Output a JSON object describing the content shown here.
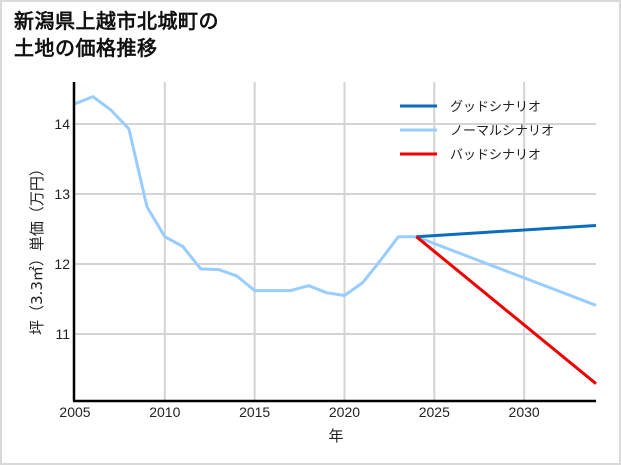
{
  "title_line1": "新潟県上越市北城町の",
  "title_line2": "土地の価格推移",
  "chart_data": {
    "type": "line",
    "title": "新潟県上越市北城町の土地の価格推移",
    "xlabel": "年",
    "ylabel": "坪（3.3㎡）単価（万円）",
    "xlim": [
      2005,
      2034
    ],
    "ylim": [
      10.2,
      14.6
    ],
    "xticks": [
      2005,
      2010,
      2015,
      2020,
      2025,
      2030
    ],
    "yticks": [
      11,
      12,
      13,
      14
    ],
    "grid": true,
    "legend_position": "upper right",
    "series": [
      {
        "name": "グッドシナリオ",
        "color": "#0a6ebd",
        "x": [
          2024,
          2034
        ],
        "values": [
          12.39,
          12.55
        ]
      },
      {
        "name": "ノーマルシナリオ",
        "color": "#99ccff",
        "x": [
          2005,
          2006,
          2007,
          2008,
          2009,
          2010,
          2011,
          2012,
          2013,
          2014,
          2015,
          2016,
          2017,
          2018,
          2019,
          2020,
          2021,
          2022,
          2023,
          2024,
          2034
        ],
        "values": [
          14.29,
          14.39,
          14.2,
          13.93,
          12.82,
          12.39,
          12.25,
          11.93,
          11.92,
          11.83,
          11.62,
          11.62,
          11.62,
          11.69,
          11.59,
          11.55,
          11.73,
          12.05,
          12.39,
          12.39,
          11.41
        ]
      },
      {
        "name": "バッドシナリオ",
        "color": "#ee0000",
        "x": [
          2024,
          2034
        ],
        "values": [
          12.39,
          10.29
        ]
      }
    ]
  }
}
